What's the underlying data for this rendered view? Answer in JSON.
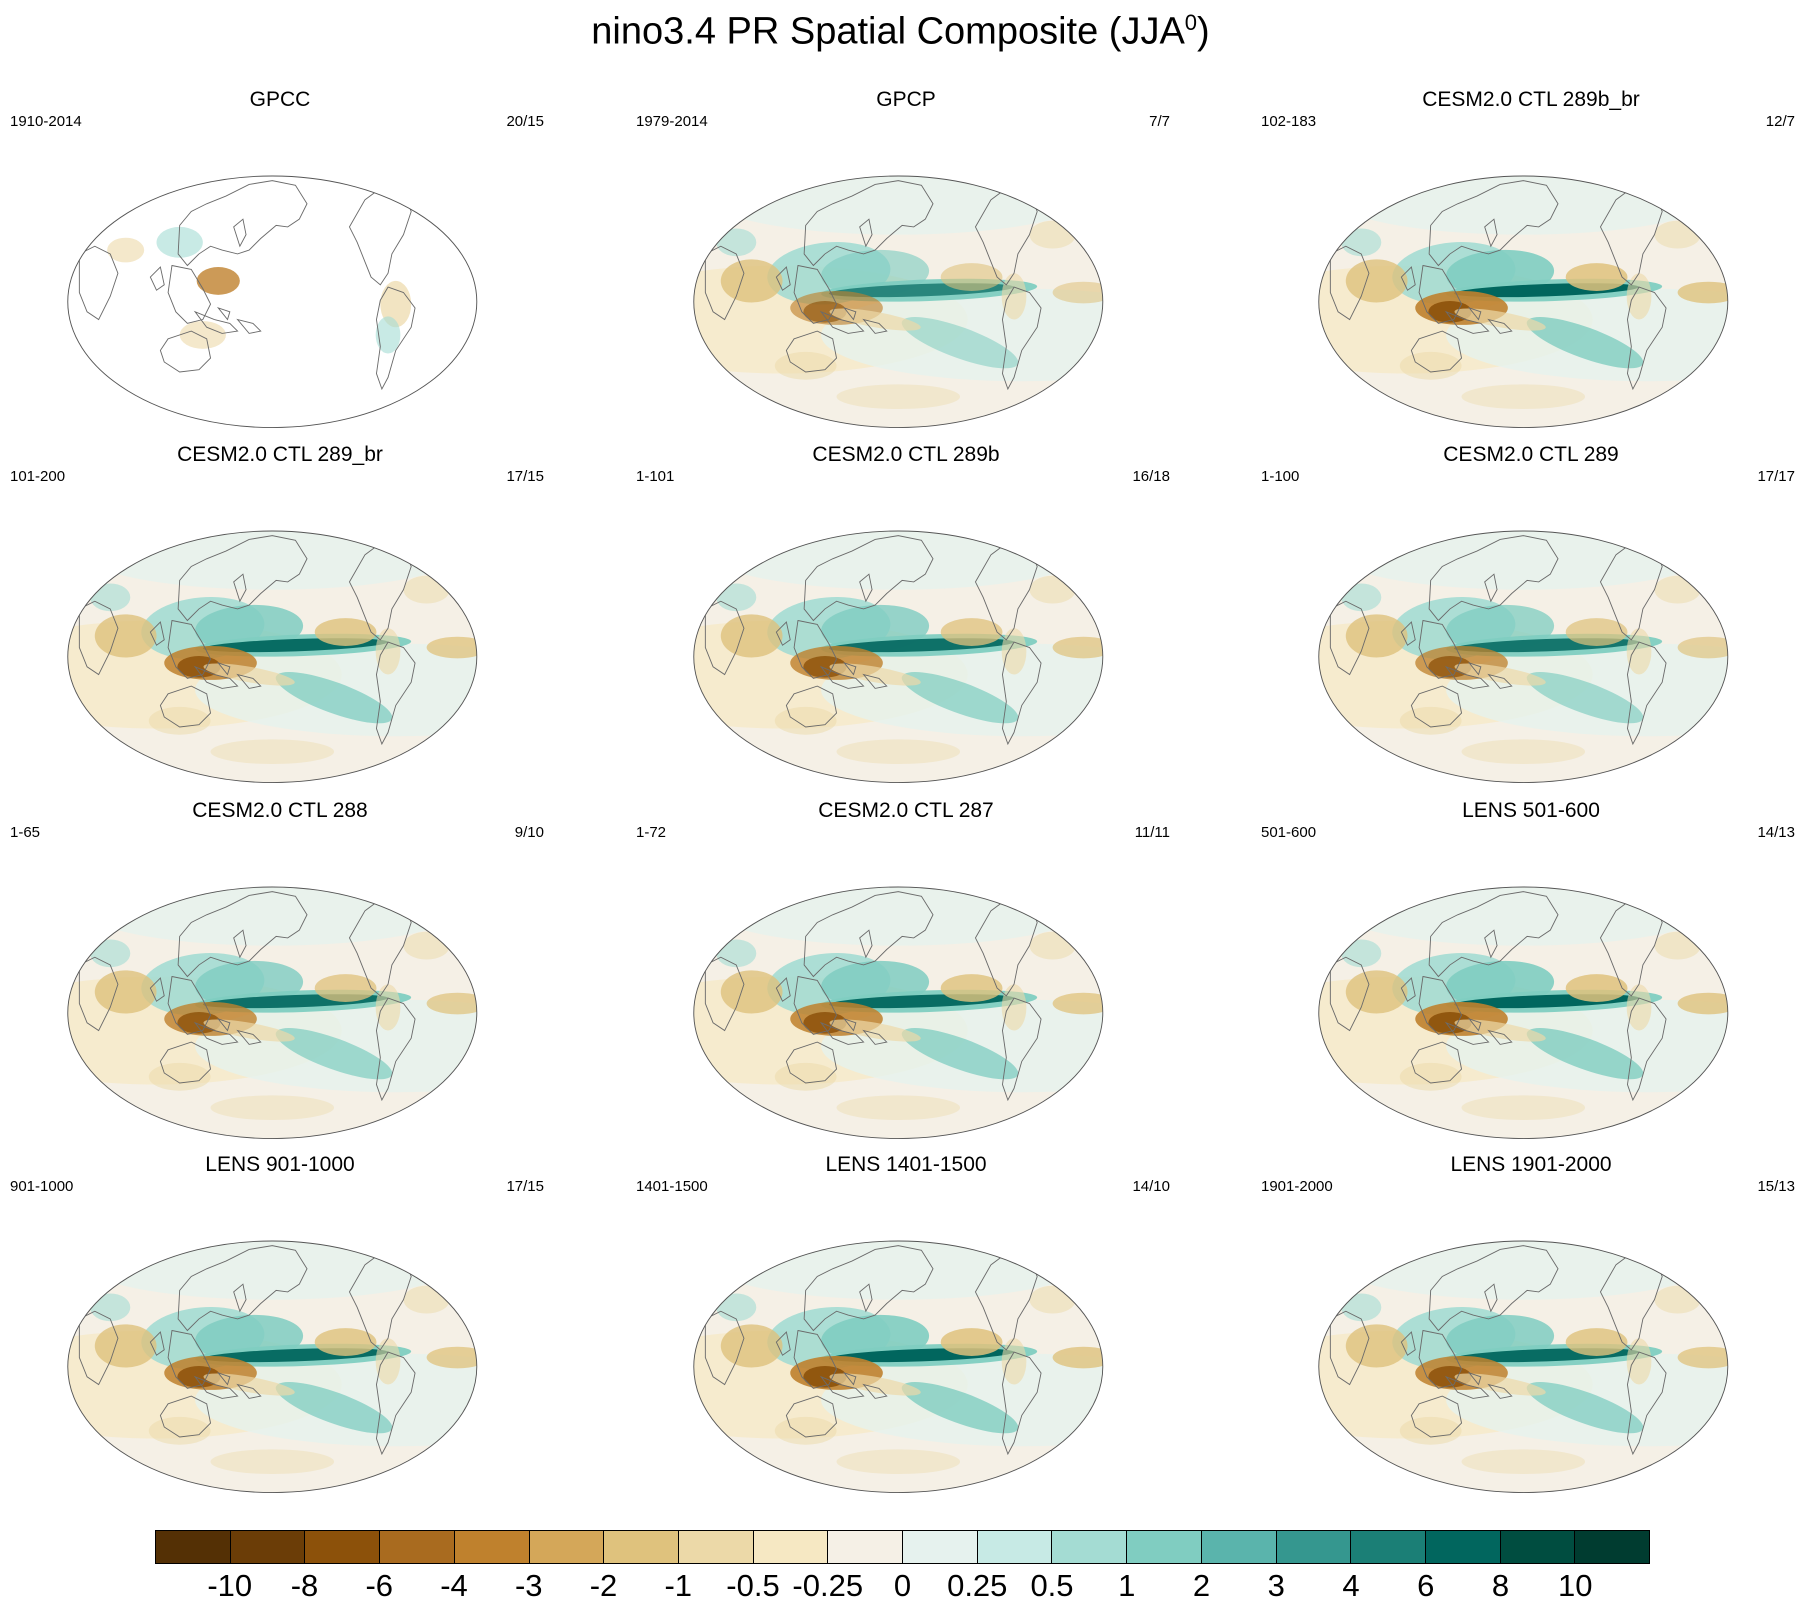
{
  "figure": {
    "title": "nino3.4 PR Spatial Composite (JJA",
    "title_sup": "0",
    "title_end": ")"
  },
  "panels": [
    {
      "title": "GPCC",
      "period": "1910-2014",
      "count": "20/15",
      "ocean_masked": true,
      "enso_strength": 0.0
    },
    {
      "title": "GPCP",
      "period": "1979-2014",
      "count": "7/7",
      "ocean_masked": false,
      "enso_strength": 0.7
    },
    {
      "title": "CESM2.0 CTL 289b_br",
      "period": "102-183",
      "count": "12/7",
      "ocean_masked": false,
      "enso_strength": 1.0
    },
    {
      "title": "CESM2.0 CTL 289_br",
      "period": "101-200",
      "count": "17/15",
      "ocean_masked": false,
      "enso_strength": 0.95
    },
    {
      "title": "CESM2.0 CTL 289b",
      "period": "1-101",
      "count": "16/18",
      "ocean_masked": false,
      "enso_strength": 0.9
    },
    {
      "title": "CESM2.0 CTL 289",
      "period": "1-100",
      "count": "17/17",
      "ocean_masked": false,
      "enso_strength": 0.85
    },
    {
      "title": "CESM2.0 CTL 288",
      "period": "1-65",
      "count": "9/10",
      "ocean_masked": false,
      "enso_strength": 0.9
    },
    {
      "title": "CESM2.0 CTL 287",
      "period": "1-72",
      "count": "11/11",
      "ocean_masked": false,
      "enso_strength": 0.95
    },
    {
      "title": "LENS 501-600",
      "period": "501-600",
      "count": "14/13",
      "ocean_masked": false,
      "enso_strength": 1.0
    },
    {
      "title": "LENS 901-1000",
      "period": "901-1000",
      "count": "17/15",
      "ocean_masked": false,
      "enso_strength": 0.95
    },
    {
      "title": "LENS 1401-1500",
      "period": "1401-1500",
      "count": "14/10",
      "ocean_masked": false,
      "enso_strength": 1.0
    },
    {
      "title": "LENS 1901-2000",
      "period": "1901-2000",
      "count": "15/13",
      "ocean_masked": false,
      "enso_strength": 0.95
    }
  ],
  "colorbar": {
    "labels": [
      "-10",
      "-8",
      "-6",
      "-4",
      "-3",
      "-2",
      "-1",
      "-0.5",
      "-0.25",
      "0",
      "0.25",
      "0.5",
      "1",
      "2",
      "3",
      "4",
      "6",
      "8",
      "10"
    ],
    "colors": [
      "#543005",
      "#6b3d07",
      "#8c510a",
      "#a96b1f",
      "#bf812d",
      "#d4a759",
      "#dfc27d",
      "#ecd9a8",
      "#f6e8c3",
      "#f5f0e6",
      "#e6f2ee",
      "#c7eae5",
      "#a4dcd3",
      "#80cdc1",
      "#5ab4ac",
      "#35978f",
      "#1b7f76",
      "#01665e",
      "#004d40",
      "#003c30"
    ]
  }
}
